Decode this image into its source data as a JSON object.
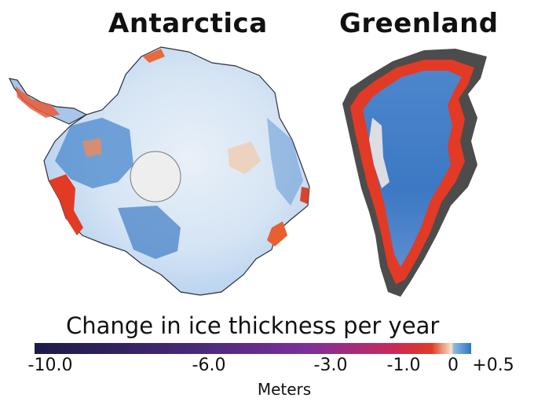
{
  "titles": {
    "left": "Antarctica",
    "right": "Greenland"
  },
  "legend": {
    "title": "Change in ice thickness per year",
    "unit": "Meters",
    "ticks": [
      "-10.0",
      "-6.0",
      "-3.0",
      "-1.0",
      "0",
      "+0.5"
    ],
    "scale": {
      "min": -10.0,
      "max": 0.5
    },
    "colors": {
      "min": "#1c1a48",
      "mid": "#7e2f9b",
      "loss": "#e23a25",
      "zero": "#f6e4c8",
      "gain": "#2c78c0"
    }
  }
}
